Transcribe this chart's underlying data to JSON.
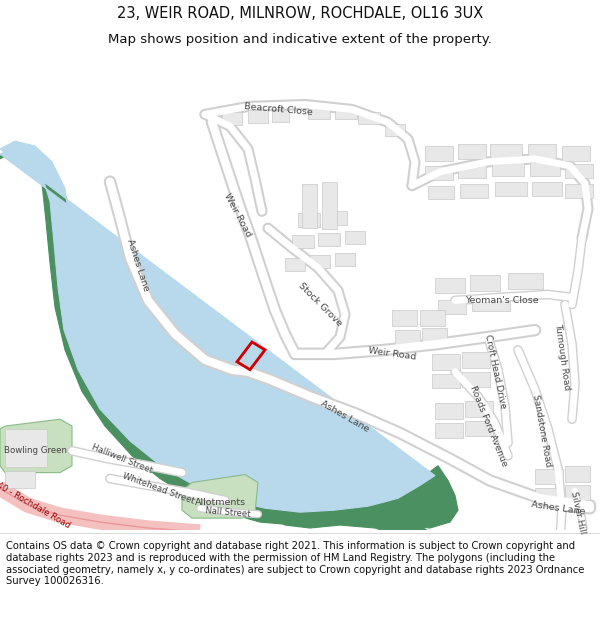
{
  "title_line1": "23, WEIR ROAD, MILNROW, ROCHDALE, OL16 3UX",
  "title_line2": "Map shows position and indicative extent of the property.",
  "footer": "Contains OS data © Crown copyright and database right 2021. This information is subject to Crown copyright and database rights 2023 and is reproduced with the permission of HM Land Registry. The polygons (including the associated geometry, namely x, y co-ordinates) are subject to Crown copyright and database rights 2023 Ordnance Survey 100026316.",
  "bg_color": "#ffffff",
  "map_bg": "#ffffff",
  "building_color": "#e8e8e8",
  "building_stroke": "#c8c8c8",
  "green_color": "#4a9060",
  "light_green_color": "#c8dfc0",
  "water_color": "#b8d8ec",
  "red_plot_color": "#cc0000",
  "a640_color": "#f5c0c0",
  "a640_stroke": "#e89898",
  "road_outer": "#d0d0d0",
  "road_inner": "#ffffff",
  "title_fontsize": 10.5,
  "subtitle_fontsize": 9.5,
  "footer_fontsize": 7.2,
  "label_fontsize": 6.8,
  "label_color": "#444444"
}
